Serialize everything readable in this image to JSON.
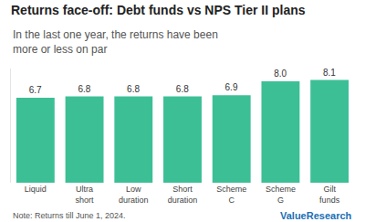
{
  "chart_data": {
    "type": "bar",
    "title": "Returns face-off: Debt funds vs NPS Tier II plans",
    "subtitle": "In the last one year, the returns have been more or less on par",
    "categories": [
      "Liquid",
      "Ultra short",
      "Low duration",
      "Short duration",
      "Scheme C",
      "Scheme G",
      "Gilt funds"
    ],
    "values": [
      6.7,
      6.8,
      6.8,
      6.8,
      6.9,
      8.0,
      8.1
    ],
    "value_labels": [
      "6.7",
      "6.8",
      "6.8",
      "6.8",
      "6.9",
      "8.0",
      "8.1"
    ],
    "color": "#3dbf96",
    "ylim": [
      0,
      9
    ],
    "yticks": [],
    "grid": false,
    "data_labels": true,
    "tick_labels": "x",
    "annotations": [
      "Note: Returns till June 1, 2024.",
      "ValueResearch"
    ]
  }
}
